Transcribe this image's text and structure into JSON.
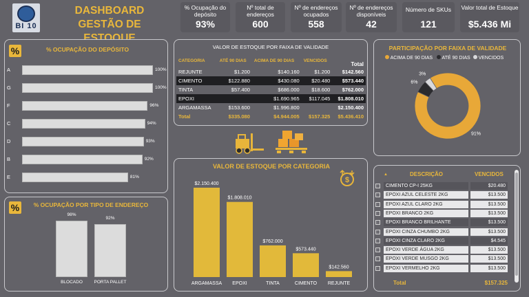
{
  "header": {
    "logo_text": "BI 10",
    "title_line1": "DASHBOARD",
    "title_line2": "GESTÃO DE ESTOQUE",
    "kpis": [
      {
        "label": "% Ocupação do depósito",
        "value": "93%"
      },
      {
        "label": "Nº total de endereços",
        "value": "600"
      },
      {
        "label": "Nº de endereços ocupados",
        "value": "558"
      },
      {
        "label": "Nº de endereços disponíveis",
        "value": "42"
      },
      {
        "label": "Número de SKUs",
        "value": "121"
      },
      {
        "label": "Valor total de Estoque",
        "value": "$5.436 Mi"
      }
    ]
  },
  "ocupacao_deposito": {
    "badge": "%",
    "title": "% OCUPAÇÃO DO DEPÓSITO",
    "rows": [
      {
        "cat": "A",
        "pct": 100,
        "label": "100%"
      },
      {
        "cat": "G",
        "pct": 100,
        "label": "100%"
      },
      {
        "cat": "F",
        "pct": 96,
        "label": "96%"
      },
      {
        "cat": "C",
        "pct": 94,
        "label": "94%"
      },
      {
        "cat": "D",
        "pct": 93,
        "label": "93%"
      },
      {
        "cat": "B",
        "pct": 92,
        "label": "92%"
      },
      {
        "cat": "E",
        "pct": 81,
        "label": "81%"
      }
    ]
  },
  "ocupacao_tipo": {
    "badge": "%",
    "title": "% OCUPAÇÃO POR TIPO DE ENDEREÇO",
    "cols": [
      {
        "name": "BLOCADO",
        "pct": 98,
        "label": "98%"
      },
      {
        "name": "PORTA PALLET",
        "pct": 92,
        "label": "92%"
      }
    ]
  },
  "valor_faixa_table": {
    "title": "VALOR DE ESTOQUE POR FAIXA DE VALIDADE",
    "headers": [
      "CATEGORIA",
      "ATÉ 90 DIAS",
      "ACIMA DE 90 DIAS",
      "VENCIDOS",
      "Total"
    ],
    "rows": [
      [
        "REJUNTE",
        "$1.200",
        "$140.160",
        "$1.200",
        "$142.560"
      ],
      [
        "CIMENTO",
        "$122.880",
        "$430.080",
        "$20.480",
        "$573.440"
      ],
      [
        "TINTA",
        "$57.400",
        "$686.000",
        "$18.600",
        "$762.000"
      ],
      [
        "EPOXI",
        "",
        "$1.690.965",
        "$117.045",
        "$1.808.010"
      ],
      [
        "ARGAMASSA",
        "$153.600",
        "$1.996.800",
        "",
        "$2.150.400"
      ]
    ],
    "total": [
      "Total",
      "$335.080",
      "$4.944.005",
      "$157.325",
      "$5.436.410"
    ]
  },
  "valor_categoria": {
    "title": "VALOR DE ESTOQUE POR CATEGORIA",
    "icon": "dollar-coin-icon"
  },
  "chart_data": {
    "type": "bar",
    "title": "VALOR DE ESTOQUE POR CATEGORIA",
    "categories": [
      "ARGAMASSA",
      "EPOXI",
      "TINTA",
      "CIMENTO",
      "REJUNTE"
    ],
    "values": [
      2150400,
      1808010,
      762000,
      573440,
      142560
    ],
    "labels": [
      "$2.150.400",
      "$1.808.010",
      "$762.000",
      "$573.440",
      "$142.560"
    ],
    "xlabel": "",
    "ylabel": ""
  },
  "participacao": {
    "title": "PARTICIPAÇÃO POR FAIXA DE VALIDADE",
    "legend": [
      "ACIMA DE 90 DIAS",
      "ATÉ 90 DIAS",
      "VENCIDOS"
    ],
    "colors": [
      "#e8a838",
      "#2b2b2e",
      "#d9d9dc"
    ],
    "values": [
      91,
      6,
      3
    ],
    "labels": [
      "91%",
      "6%",
      "3%"
    ]
  },
  "vencidos_list": {
    "headers": [
      "DESCRIÇÃO",
      "VENCIDOS"
    ],
    "rows": [
      {
        "desc": "CIMENTO CP-I 25KG",
        "value": "$20.480"
      },
      {
        "desc": "EPOXI AZUL CELESTE 2KG",
        "value": "$13.500"
      },
      {
        "desc": "EPOXI AZUL CLARO 2KG",
        "value": "$13.500"
      },
      {
        "desc": "EPOXI BRANCO 2KG",
        "value": "$13.500"
      },
      {
        "desc": "EPOXI BRANCO BRILHANTE",
        "value": "$13.500"
      },
      {
        "desc": "EPOXI CINZA CHUMBO 2KG",
        "value": "$13.500"
      },
      {
        "desc": "EPOXI CINZA CLARO 2KG",
        "value": "$4.545"
      },
      {
        "desc": "EPOXI VERDE ÁGUA 2KG",
        "value": "$13.500"
      },
      {
        "desc": "EPOXI VERDE MUSGO 2KG",
        "value": "$13.500"
      },
      {
        "desc": "EPOXI VERMELHO 2KG",
        "value": "$13.500"
      }
    ],
    "total_label": "Total",
    "total_value": "$157.325"
  }
}
